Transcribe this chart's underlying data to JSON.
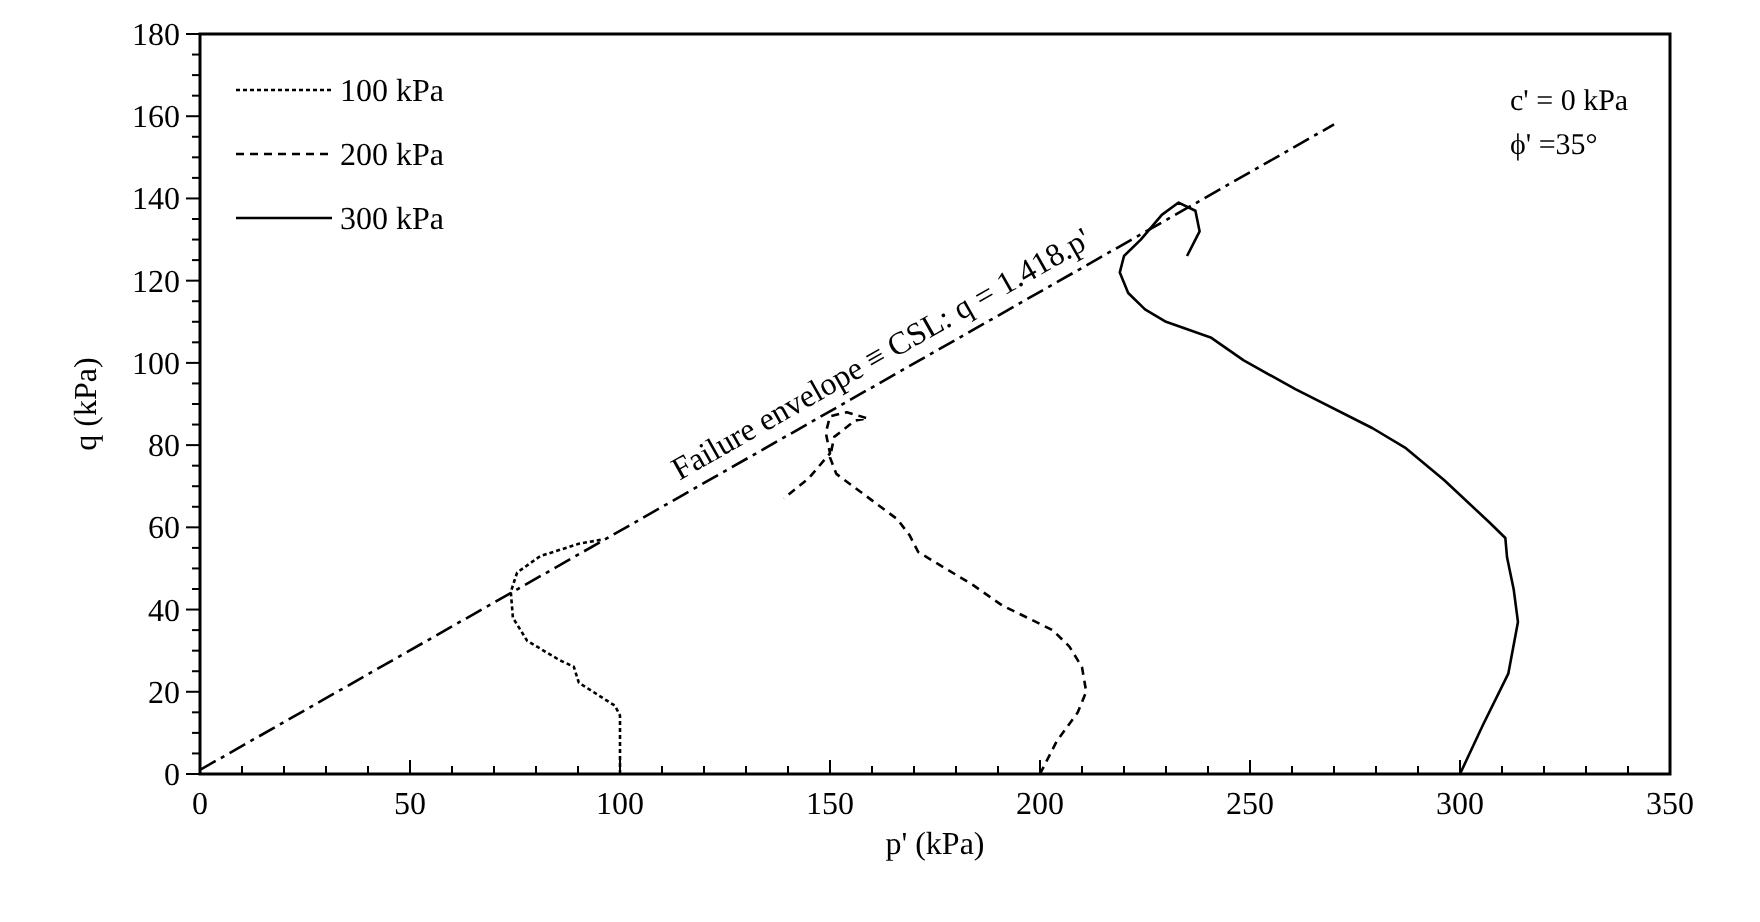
{
  "chart_data": {
    "type": "line",
    "xlabel": "p' (kPa)",
    "ylabel": "q (kPa)",
    "xlim": [
      0,
      350
    ],
    "xticks": [
      0,
      {
        "value": 10,
        "label": null
      },
      {
        "value": 20,
        "label": null
      },
      {
        "value": 30,
        "label": null
      },
      {
        "value": 40,
        "label": null
      },
      50,
      {
        "value": 60,
        "label": null
      },
      {
        "value": 70,
        "label": null
      },
      {
        "value": 80,
        "label": null
      },
      {
        "value": 90,
        "label": null
      },
      100,
      {
        "value": 110,
        "label": null
      },
      {
        "value": 120,
        "label": null
      },
      {
        "value": 130,
        "label": null
      },
      {
        "value": 140,
        "label": null
      },
      150,
      {
        "value": 160,
        "label": null
      },
      {
        "value": 170,
        "label": null
      },
      {
        "value": 180,
        "label": null
      },
      {
        "value": 190,
        "label": null
      },
      200,
      {
        "value": 210,
        "label": null
      },
      {
        "value": 220,
        "label": null
      },
      {
        "value": 230,
        "label": null
      },
      {
        "value": 240,
        "label": null
      },
      250,
      {
        "value": 260,
        "label": null
      },
      {
        "value": 270,
        "label": null
      },
      {
        "value": 280,
        "label": null
      },
      {
        "value": 290,
        "label": null
      },
      300,
      {
        "value": 310,
        "label": null
      },
      {
        "value": 320,
        "label": null
      },
      {
        "value": 330,
        "label": null
      },
      {
        "value": 340,
        "label": null
      },
      350
    ],
    "ylim": [
      0,
      180
    ],
    "yticks": [
      0,
      {
        "value": 5,
        "label": null
      },
      {
        "value": 10,
        "label": null
      },
      {
        "value": 15,
        "label": null
      },
      20,
      {
        "value": 25,
        "label": null
      },
      {
        "value": 30,
        "label": null
      },
      {
        "value": 35,
        "label": null
      },
      40,
      {
        "value": 45,
        "label": null
      },
      {
        "value": 50,
        "label": null
      },
      {
        "value": 55,
        "label": null
      },
      60,
      {
        "value": 65,
        "label": null
      },
      {
        "value": 70,
        "label": null
      },
      {
        "value": 75,
        "label": null
      },
      80,
      {
        "value": 85,
        "label": null
      },
      {
        "value": 90,
        "label": null
      },
      {
        "value": 95,
        "label": null
      },
      100,
      {
        "value": 105,
        "label": null
      },
      {
        "value": 110,
        "label": null
      },
      {
        "value": 115,
        "label": null
      },
      120,
      {
        "value": 125,
        "label": null
      },
      {
        "value": 130,
        "label": null
      },
      {
        "value": 135,
        "label": null
      },
      140,
      {
        "value": 145,
        "label": null
      },
      {
        "value": 150,
        "label": null
      },
      {
        "value": 155,
        "label": null
      },
      160,
      {
        "value": 165,
        "label": null
      },
      {
        "value": 170,
        "label": null
      },
      {
        "value": 175,
        "label": null
      },
      180
    ],
    "grid": false,
    "legend": "top left",
    "marker": "none",
    "series": [
      {
        "name": "100 kPa",
        "color": "#000000",
        "line_style": "dotted",
        "x": [
          100,
          100,
          98.8,
          90.2,
          89,
          85.6,
          77.9,
          74.5,
          74,
          75.5,
          81,
          90.2,
          95.7
        ],
        "values": [
          0,
          14.2,
          16.6,
          22.2,
          26.1,
          27.7,
          32.4,
          38,
          44.3,
          49,
          53,
          56,
          57
        ]
      },
      {
        "name": "200 kPa",
        "color": "#000000",
        "line_style": "dashed",
        "x": [
          200,
          204,
          209,
          211,
          210,
          207,
          203,
          197,
          191,
          184,
          171,
          169,
          166,
          151.5,
          150,
          151,
          156,
          159,
          154,
          150,
          149,
          150,
          145,
          139
        ],
        "values": [
          0,
          8,
          15,
          20,
          26,
          31,
          35,
          38,
          41,
          46,
          54,
          58,
          62,
          73,
          77,
          82,
          86,
          86.5,
          88,
          87,
          83,
          78,
          72,
          67
        ]
      },
      {
        "name": "300 kPa",
        "color": "#000000",
        "line_style": "solid",
        "x": [
          300,
          305.4,
          311.5,
          313.8,
          312.8,
          311.2,
          310.8,
          306.9,
          296.2,
          286.9,
          279.2,
          260.8,
          248.5,
          240.8,
          230,
          225,
          221,
          219,
          220,
          224,
          229,
          233,
          237,
          238,
          235
        ],
        "values": [
          0,
          11.8,
          24.4,
          37,
          44.8,
          52.7,
          57.4,
          61.3,
          71.5,
          79.4,
          84.1,
          93.6,
          100.6,
          106.1,
          110,
          113,
          117,
          122,
          126,
          130,
          136,
          139,
          137,
          132,
          126
        ]
      },
      {
        "color": "#000000",
        "line_style": "dashdot",
        "x": [
          0,
          270
        ],
        "values": [
          1,
          158
        ]
      }
    ],
    "annotations": [
      {
        "text": "Failure envelope ≡ CSL: q = 1.418.p'",
        "x": 165,
        "y": 97
      },
      "c' = 0 kPa",
      "ϕ' =35°"
    ]
  }
}
